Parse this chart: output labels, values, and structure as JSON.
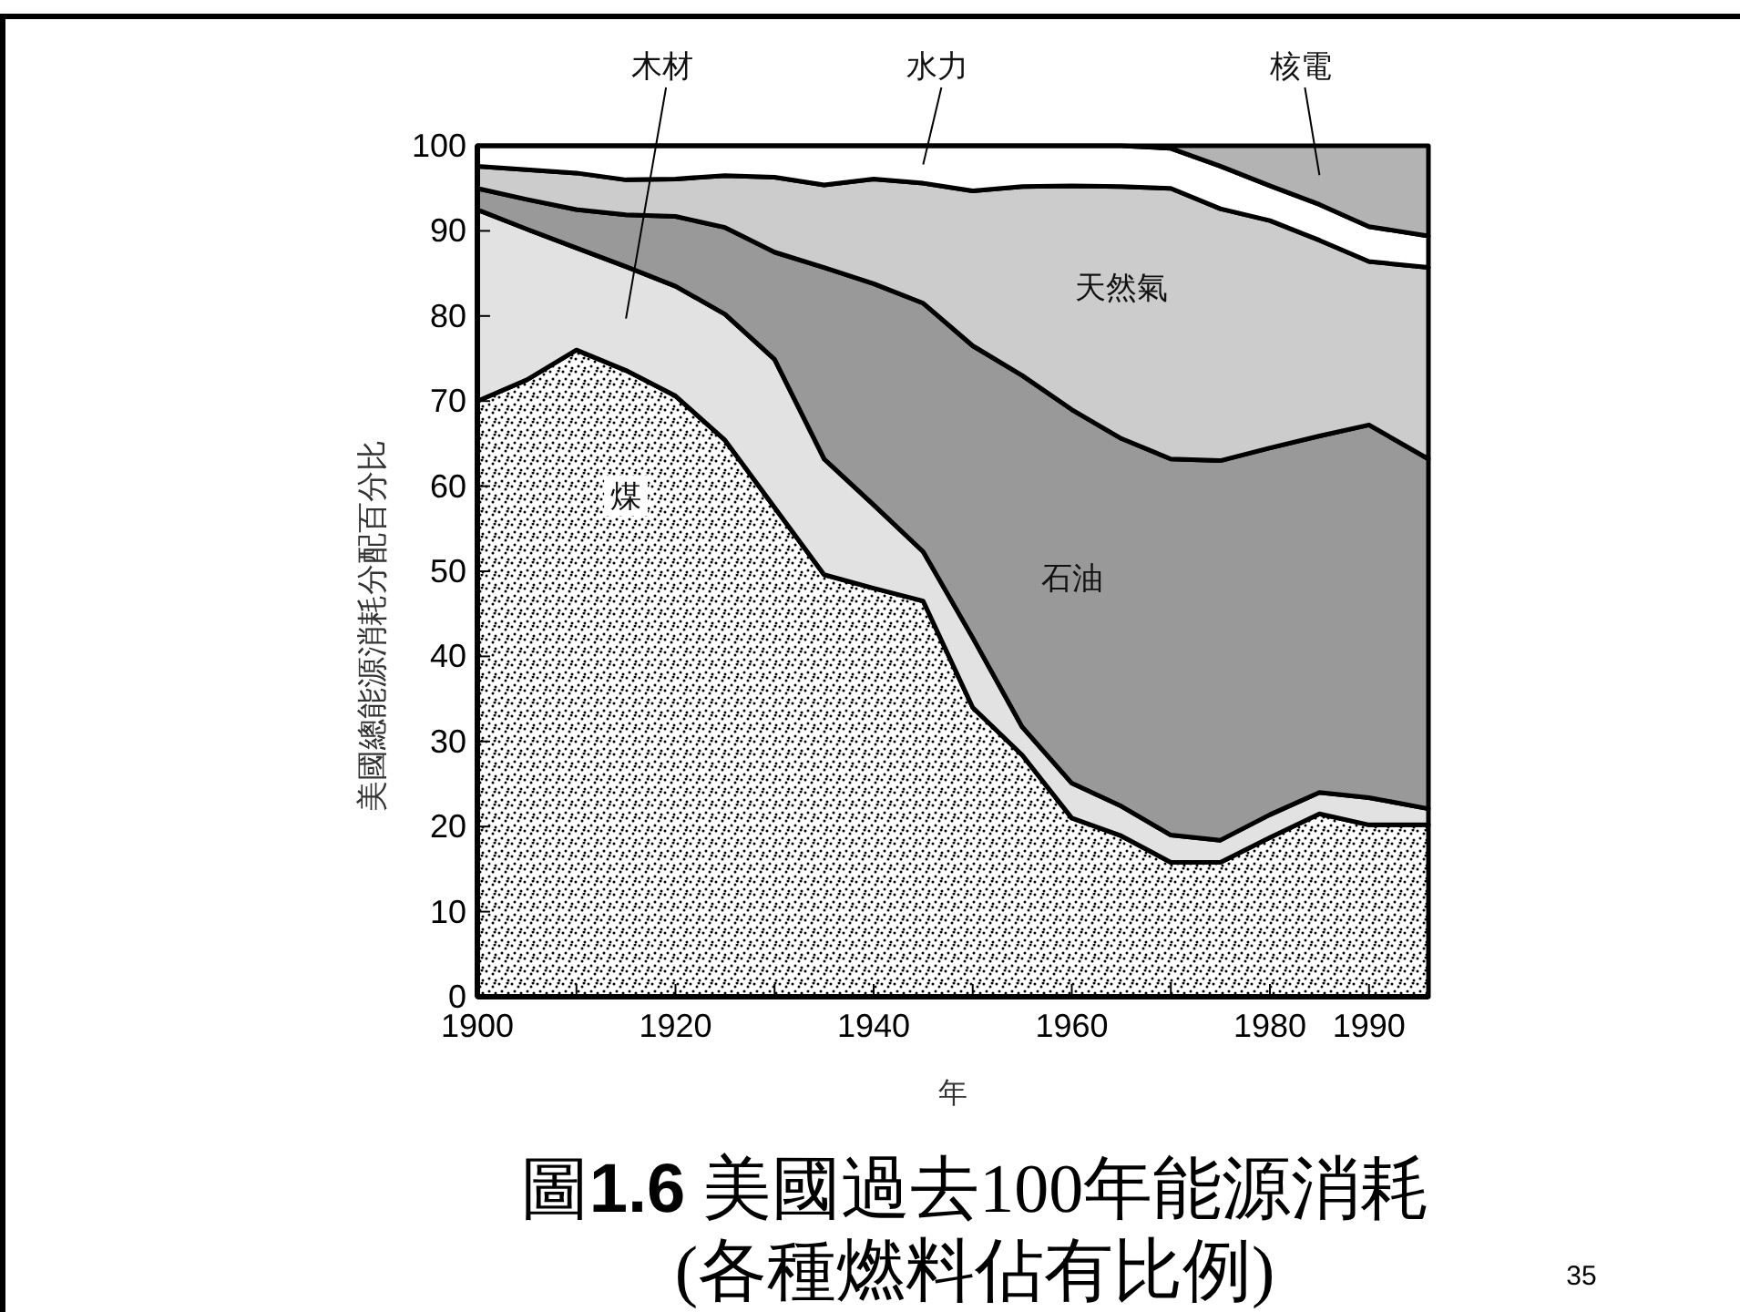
{
  "chart_data": {
    "type": "area",
    "stacked": true,
    "title": "圖**1.6** 美國過去100年能源消耗",
    "subtitle": "(各種燃料佔有比例)",
    "xlabel": "年",
    "ylabel": "美國總能源消耗分配百分比",
    "annotations": [
      "35"
    ],
    "x": [
      1900,
      1905,
      1910,
      1915,
      1920,
      1925,
      1930,
      1935,
      1940,
      1945,
      1950,
      1955,
      1960,
      1965,
      1970,
      1975,
      1980,
      1985,
      1990,
      1996
    ],
    "xlim": [
      1900,
      1996
    ],
    "xticks": [
      1900,
      {
        "value": 1910,
        "label": null
      },
      1920,
      {
        "value": 1930,
        "label": null
      },
      1940,
      {
        "value": 1950,
        "label": null
      },
      1960,
      {
        "value": 1970,
        "label": null
      },
      1980,
      1990
    ],
    "ylim": [
      0,
      100
    ],
    "yticks": [
      0,
      10,
      20,
      30,
      40,
      50,
      60,
      70,
      80,
      90,
      100
    ],
    "grid": false,
    "legend": false,
    "series": [
      {
        "name": "煤",
        "color": "#000000",
        "values": [
          70,
          72.5,
          76,
          73.6,
          70.6,
          65.4,
          57.5,
          49.6,
          48,
          46.5,
          34,
          28.4,
          21,
          18.9,
          15.8,
          15.8,
          18.7,
          21.5,
          20.2,
          20.2
        ]
      },
      {
        "name": "木材",
        "color": "#e2e2e2",
        "values": [
          22.5,
          17.7,
          12,
          12.2,
          12.9,
          14.8,
          17.4,
          13.6,
          9.8,
          5.8,
          8.2,
          3.3,
          4.1,
          3.5,
          3.2,
          2.6,
          2.7,
          2.5,
          3.2,
          1.9
        ]
      },
      {
        "name": "石油",
        "color": "#999999",
        "values": [
          2.5,
          3.5,
          4.5,
          6.1,
          8.2,
          10.2,
          12.6,
          22.5,
          26.0,
          29.2,
          34.3,
          41.3,
          43.9,
          43.2,
          44.2,
          44.6,
          43.1,
          41.9,
          43.8,
          41.1
        ]
      },
      {
        "name": "天然氣",
        "color": "#cccccc",
        "values": [
          2.6,
          3.5,
          4.3,
          4.1,
          4.4,
          6.1,
          8.8,
          9.7,
          12.3,
          14.1,
          18.2,
          22.2,
          26.3,
          29.6,
          31.8,
          29.6,
          26.7,
          23.0,
          19.2,
          22.5
        ]
      },
      {
        "name": "水力",
        "color": "#ffffff",
        "values": [
          2.4,
          2.8,
          3.2,
          4.0,
          3.9,
          3.5,
          3.7,
          4.6,
          3.9,
          4.4,
          5.3,
          4.8,
          4.7,
          4.8,
          4.7,
          5.0,
          4.1,
          4.2,
          4.1,
          3.7
        ]
      },
      {
        "name": "核電",
        "color": "#b3b3b3",
        "values": [
          0,
          0,
          0,
          0,
          0,
          0,
          0,
          0,
          0,
          0,
          0,
          0,
          0,
          0,
          0.3,
          2.4,
          4.7,
          6.9,
          9.5,
          10.6
        ]
      }
    ]
  }
}
